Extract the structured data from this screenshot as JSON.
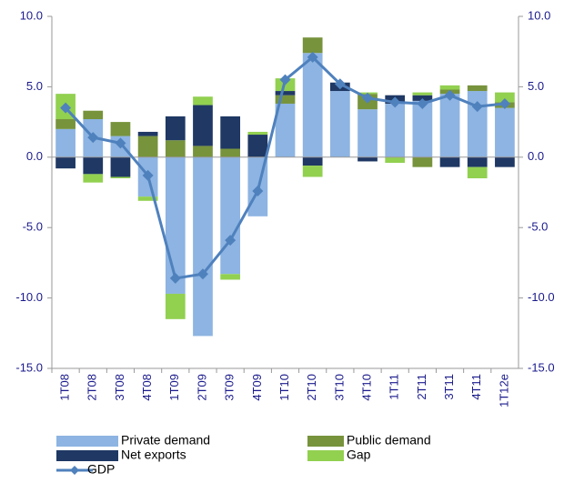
{
  "chart_data": {
    "type": "bar",
    "stacked": true,
    "categories": [
      "1T08",
      "2T08",
      "3T08",
      "4T08",
      "1T09",
      "2T09",
      "3T09",
      "4T09",
      "1T10",
      "2T10",
      "3T10",
      "4T10",
      "1T11",
      "2T11",
      "3T11",
      "4T11",
      "1T12e"
    ],
    "series": [
      {
        "name": "Private demand",
        "color": "#8db4e2",
        "values": [
          2.0,
          2.7,
          1.5,
          -2.8,
          -9.7,
          -12.7,
          -8.3,
          -4.2,
          3.8,
          7.4,
          4.7,
          3.4,
          3.8,
          4.0,
          4.5,
          4.7,
          3.5
        ]
      },
      {
        "name": "Public demand",
        "color": "#77933c",
        "values": [
          0.7,
          0.6,
          1.0,
          1.5,
          1.2,
          0.8,
          0.6,
          0,
          0.6,
          1.1,
          0,
          1.1,
          0,
          -0.7,
          0.3,
          0.4,
          0.4
        ]
      },
      {
        "name": "Net exports",
        "color": "#1f3864",
        "values": [
          -0.8,
          -1.2,
          -1.4,
          0.3,
          1.7,
          2.9,
          2.3,
          1.6,
          0.3,
          -0.6,
          0.6,
          -0.3,
          0.6,
          0.4,
          -0.7,
          -0.7,
          -0.7
        ]
      },
      {
        "name": "Gap",
        "color": "#92d050",
        "values": [
          1.8,
          -0.6,
          -0.1,
          -0.3,
          -1.8,
          0.6,
          -0.4,
          0.2,
          0.9,
          -0.8,
          0,
          0.1,
          -0.4,
          0.2,
          0.3,
          -0.8,
          0.7
        ]
      },
      {
        "name": "GDP",
        "color": "#4f81bd",
        "type": "line",
        "axis": "y2",
        "values": [
          3.5,
          1.4,
          1.0,
          -1.3,
          -8.6,
          -8.3,
          -5.9,
          -2.4,
          5.5,
          7.1,
          5.2,
          4.2,
          3.9,
          3.8,
          4.4,
          3.6,
          3.8
        ]
      }
    ],
    "ylim": [
      -15,
      10
    ],
    "yticks": [
      {
        "value": -15,
        "label": "-15.0"
      },
      {
        "value": -10,
        "label": "-10.0"
      },
      {
        "value": -5,
        "label": "-5.0"
      },
      {
        "value": 0,
        "label": "0.0"
      },
      {
        "value": 5,
        "label": "5.0"
      },
      {
        "value": 10,
        "label": "10.0"
      }
    ],
    "y2lim": [
      -15,
      10
    ],
    "y2ticks": [
      {
        "value": -15,
        "label": "-15.0"
      },
      {
        "value": -10,
        "label": "-10.0"
      },
      {
        "value": -5,
        "label": "-5.0"
      },
      {
        "value": 0,
        "label": "0.0"
      },
      {
        "value": 5,
        "label": "5.0"
      },
      {
        "value": 10,
        "label": "10.0"
      }
    ]
  }
}
